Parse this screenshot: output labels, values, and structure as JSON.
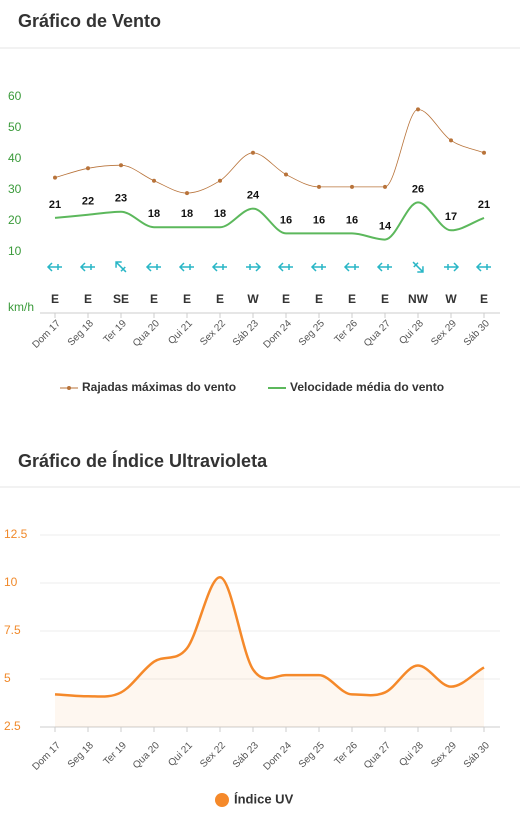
{
  "chart_data": [
    {
      "type": "line",
      "title": "Gráfico de Vento",
      "categories": [
        "Dom 17",
        "Seg 18",
        "Ter 19",
        "Qua 20",
        "Qui 21",
        "Sex 22",
        "Sáb 23",
        "Dom 24",
        "Seg 25",
        "Ter 26",
        "Qua 27",
        "Qui 28",
        "Sex 29",
        "Sáb 30"
      ],
      "directions": [
        "E",
        "E",
        "SE",
        "E",
        "E",
        "E",
        "W",
        "E",
        "E",
        "E",
        "E",
        "NW",
        "W",
        "E"
      ],
      "unit": "km/h",
      "ylim": [
        10,
        60
      ],
      "yticks": [
        10,
        20,
        30,
        40,
        50,
        60
      ],
      "grid": false,
      "tick_color": "#3a9a3a",
      "series": [
        {
          "name": "Rajadas máximas do vento",
          "color": "#b8733a",
          "markers": true,
          "values": [
            34,
            37,
            38,
            33,
            29,
            33,
            42,
            35,
            31,
            31,
            31,
            56,
            46,
            42
          ]
        },
        {
          "name": "Velocidade média do vento",
          "color": "#5cb85c",
          "data_labels": true,
          "values": [
            21,
            22,
            23,
            18,
            18,
            18,
            24,
            16,
            16,
            16,
            14,
            26,
            17,
            21
          ]
        }
      ]
    },
    {
      "type": "area",
      "title": "Gráfico de Índice Ultravioleta",
      "categories": [
        "Dom 17",
        "Seg 18",
        "Ter 19",
        "Qua 20",
        "Qui 21",
        "Sex 22",
        "Sáb 23",
        "Dom 24",
        "Seg 25",
        "Ter 26",
        "Qua 27",
        "Qui 28",
        "Sex 29",
        "Sáb 30"
      ],
      "ylim": [
        2.5,
        12.5
      ],
      "yticks": [
        2.5,
        5,
        7.5,
        10,
        12.5
      ],
      "grid": true,
      "tick_color": "#f0892a",
      "series": [
        {
          "name": "Índice UV",
          "color": "#f5892a",
          "values": [
            4.2,
            4.1,
            4.3,
            5.9,
            6.6,
            10.3,
            5.5,
            5.2,
            5.2,
            4.2,
            4.3,
            5.7,
            4.6,
            5.6
          ]
        }
      ]
    }
  ]
}
